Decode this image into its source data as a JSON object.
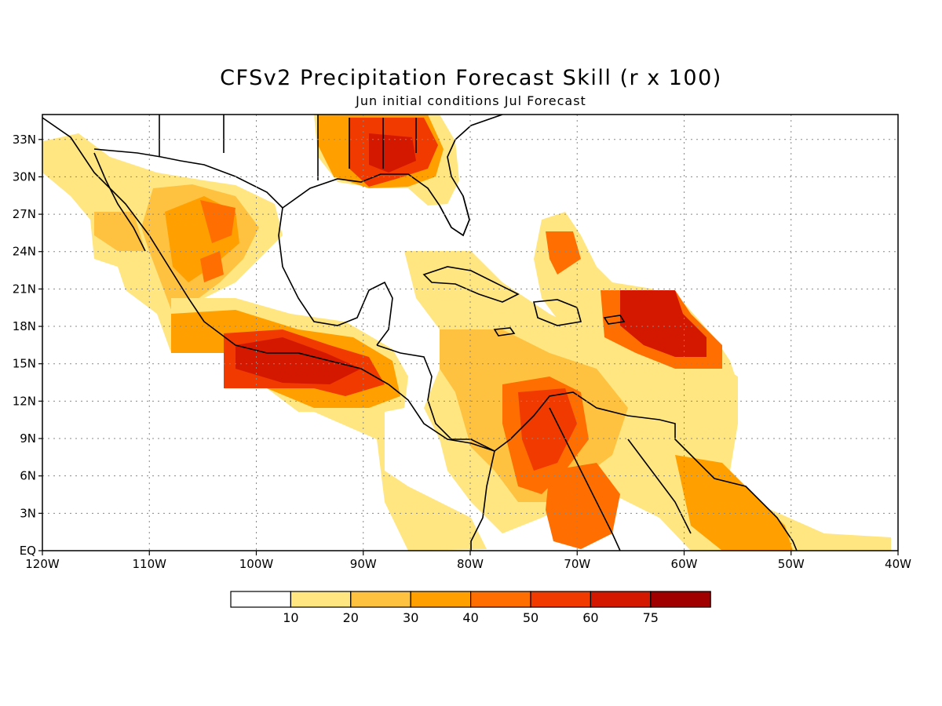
{
  "title": "CFSv2 Precipitation Forecast Skill (r x 100)",
  "subtitle": "Jun initial conditions  Jul Forecast",
  "colors": {
    "bin0": "#ffffff",
    "bin1": "#ffe680",
    "bin2": "#ffc140",
    "bin3": "#ffa000",
    "bin4": "#ff6e00",
    "bin5": "#f03a00",
    "bin6": "#d41800",
    "bin7": "#a00000",
    "coast": "#000000",
    "grid": "#888888"
  },
  "map": {
    "lon_range": [
      -120,
      -40
    ],
    "lat_range": [
      0,
      35
    ],
    "x_ticks": [
      {
        "lon": -120,
        "label": "120W"
      },
      {
        "lon": -110,
        "label": "110W"
      },
      {
        "lon": -100,
        "label": "100W"
      },
      {
        "lon": -90,
        "label": "90W"
      },
      {
        "lon": -80,
        "label": "80W"
      },
      {
        "lon": -70,
        "label": "70W"
      },
      {
        "lon": -60,
        "label": "60W"
      },
      {
        "lon": -50,
        "label": "50W"
      },
      {
        "lon": -40,
        "label": "40W"
      }
    ],
    "y_ticks": [
      {
        "lat": 0,
        "label": "EQ"
      },
      {
        "lat": 3,
        "label": "3N"
      },
      {
        "lat": 6,
        "label": "6N"
      },
      {
        "lat": 9,
        "label": "9N"
      },
      {
        "lat": 12,
        "label": "12N"
      },
      {
        "lat": 15,
        "label": "15N"
      },
      {
        "lat": 18,
        "label": "18N"
      },
      {
        "lat": 21,
        "label": "21N"
      },
      {
        "lat": 24,
        "label": "24N"
      },
      {
        "lat": 27,
        "label": "27N"
      },
      {
        "lat": 30,
        "label": "30N"
      },
      {
        "lat": 33,
        "label": "33N"
      }
    ]
  },
  "colorbar": {
    "levels": [
      "10",
      "20",
      "30",
      "40",
      "50",
      "60",
      "75"
    ]
  }
}
